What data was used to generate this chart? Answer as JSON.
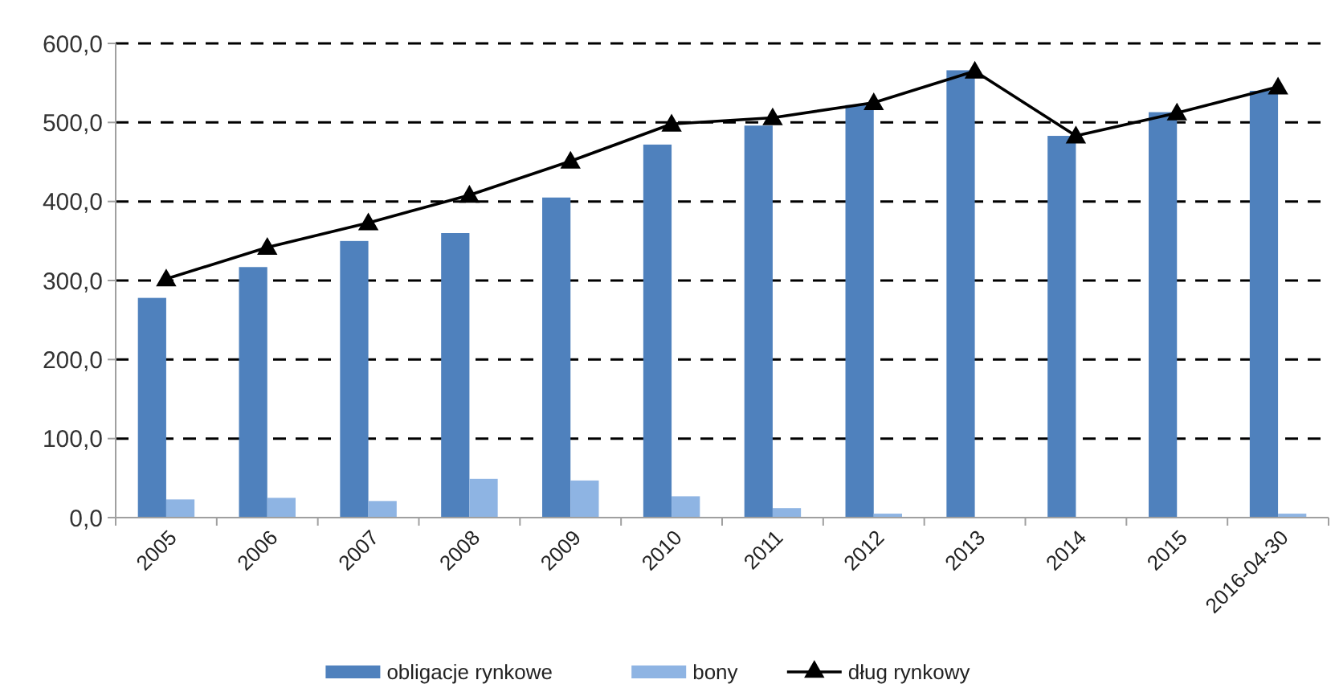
{
  "chart_data": {
    "type": "bar",
    "categories": [
      "2005",
      "2006",
      "2007",
      "2008",
      "2009",
      "2010",
      "2011",
      "2012",
      "2013",
      "2014",
      "2015",
      "2016-04-30"
    ],
    "series": [
      {
        "name": "obligacje rynkowe",
        "color": "#4f81bd",
        "values": [
          278,
          317,
          350,
          360,
          405,
          472,
          496,
          522,
          566,
          483,
          513,
          540
        ]
      },
      {
        "name": "bony",
        "color": "#8eb4e3",
        "values": [
          23,
          25,
          21,
          49,
          47,
          27,
          12,
          5,
          0,
          0,
          0,
          5
        ]
      },
      {
        "name": "dług rynkowy",
        "type": "line",
        "color": "#000000",
        "marker": "triangle",
        "values": [
          302,
          342,
          373,
          408,
          451,
          498,
          506,
          525,
          565,
          483,
          512,
          545
        ]
      }
    ],
    "ylim": [
      0,
      600
    ],
    "yticks": [
      {
        "value": 0,
        "label": "0,0"
      },
      {
        "value": 100,
        "label": "100,0"
      },
      {
        "value": 200,
        "label": "200,0"
      },
      {
        "value": 300,
        "label": "300,0"
      },
      {
        "value": 400,
        "label": "400,0"
      },
      {
        "value": 500,
        "label": "500,0"
      },
      {
        "value": 600,
        "label": "600,0"
      }
    ],
    "grid": "y",
    "legend": "bottom"
  }
}
